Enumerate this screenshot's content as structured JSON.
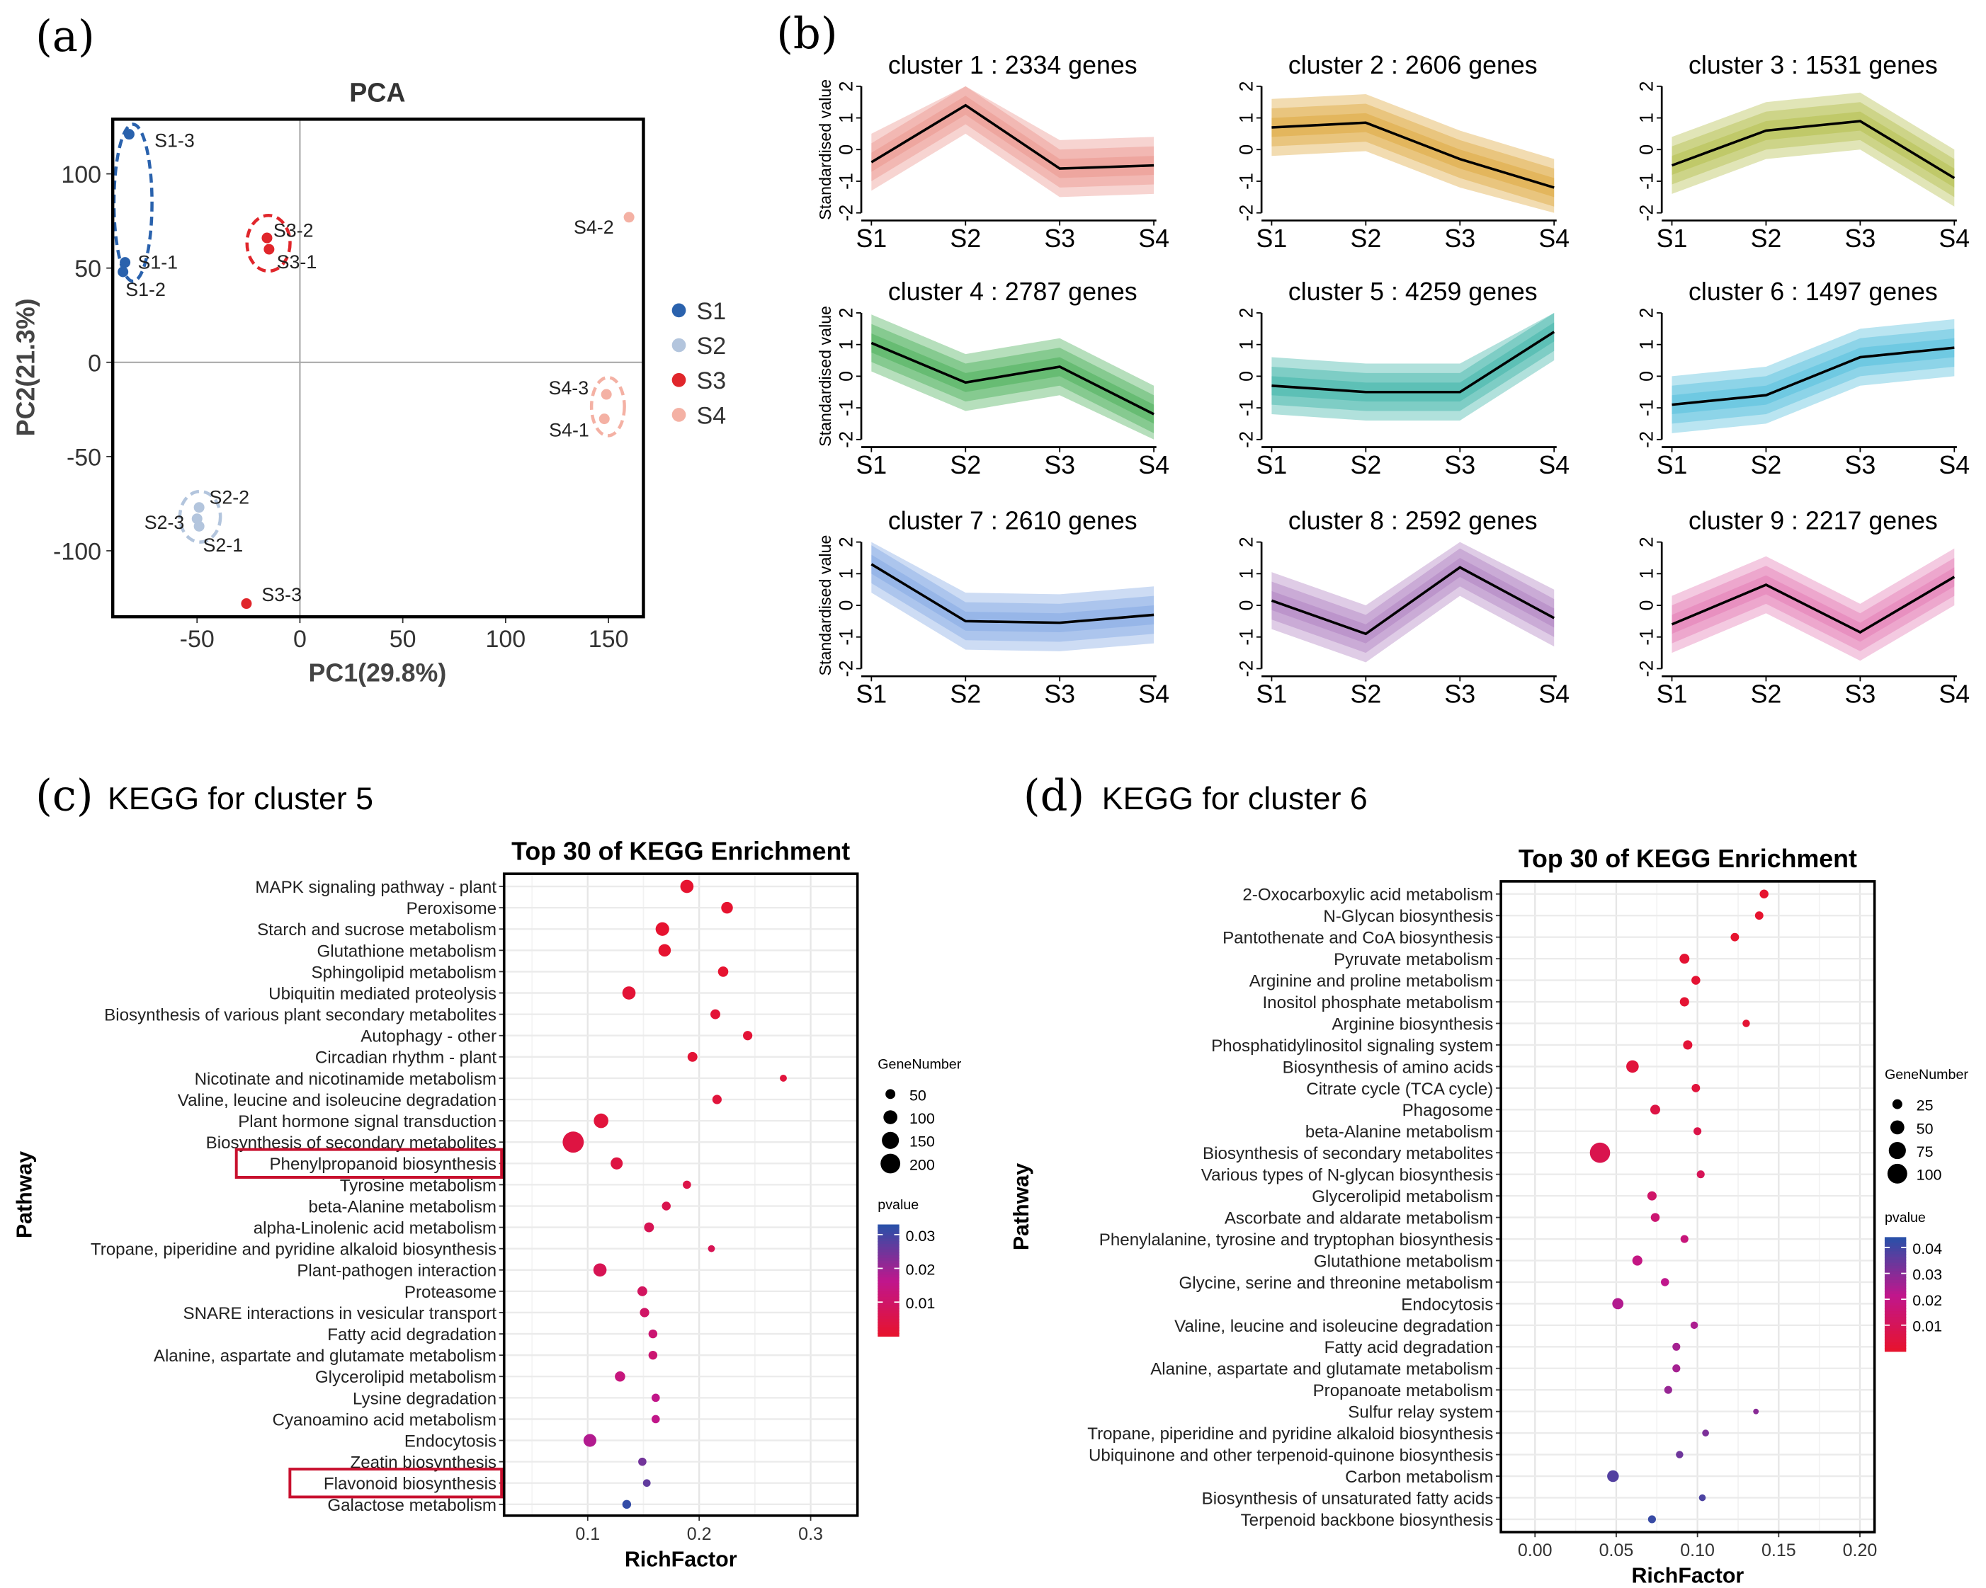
{
  "panel_labels": {
    "a": "(a)",
    "b": "(b)",
    "c": "(c)",
    "d": "(d)"
  },
  "headings": {
    "c": "KEGG for cluster 5",
    "d": "KEGG for cluster 6"
  },
  "chart_data": [
    {
      "type": "scatter",
      "title": "PCA",
      "xlabel": "PC1(29.8%)",
      "ylabel": "PC2(21.3%)",
      "xlim": [
        -91,
        167
      ],
      "ylim": [
        -135,
        129
      ],
      "xticks": [
        -50,
        0,
        50,
        100,
        150
      ],
      "yticks": [
        -100,
        -50,
        0,
        50,
        100
      ],
      "legend_position": "right",
      "groups": [
        {
          "name": "S1",
          "color": "#2a62ad"
        },
        {
          "name": "S2",
          "color": "#b3c5dd"
        },
        {
          "name": "S3",
          "color": "#e0262b"
        },
        {
          "name": "S4",
          "color": "#f4b1a4"
        }
      ],
      "points": [
        {
          "label": "S1-1",
          "group": "S1",
          "x": -85,
          "y": 53
        },
        {
          "label": "S1-2",
          "group": "S1",
          "x": -86,
          "y": 48
        },
        {
          "label": "S1-3",
          "group": "S1",
          "x": -83,
          "y": 121
        },
        {
          "label": "S2-1",
          "group": "S2",
          "x": -49,
          "y": -87
        },
        {
          "label": "S2-2",
          "group": "S2",
          "x": -49,
          "y": -77
        },
        {
          "label": "S2-3",
          "group": "S2",
          "x": -50,
          "y": -83
        },
        {
          "label": "S3-1",
          "group": "S3",
          "x": -15,
          "y": 60
        },
        {
          "label": "S3-2",
          "group": "S3",
          "x": -16,
          "y": 66
        },
        {
          "label": "S3-3",
          "group": "S3",
          "x": -26,
          "y": -128
        },
        {
          "label": "S4-1",
          "group": "S4",
          "x": 148,
          "y": -30
        },
        {
          "label": "S4-2",
          "group": "S4",
          "x": 160,
          "y": 77
        },
        {
          "label": "S4-3",
          "group": "S4",
          "x": 149,
          "y": -17
        }
      ]
    },
    {
      "type": "line",
      "categories": [
        "S1",
        "S2",
        "S3",
        "S4"
      ],
      "ylabel": "Standardised value",
      "ylim": [
        -2,
        2
      ],
      "yticks": [
        -2,
        -1,
        0,
        1,
        2
      ],
      "panels": [
        {
          "title": "cluster 1 : 2334 genes",
          "color": "#e8857c",
          "values": [
            -0.4,
            1.4,
            -0.6,
            -0.5
          ]
        },
        {
          "title": "cluster 2 : 2606 genes",
          "color": "#d99a1f",
          "values": [
            0.7,
            0.85,
            -0.3,
            -1.2
          ]
        },
        {
          "title": "cluster 3 : 1531 genes",
          "color": "#a8b530",
          "values": [
            -0.5,
            0.6,
            0.9,
            -0.9
          ]
        },
        {
          "title": "cluster 4 : 2787 genes",
          "color": "#2ea33e",
          "values": [
            1.05,
            -0.2,
            0.3,
            -1.2
          ]
        },
        {
          "title": "cluster 5 : 4259 genes",
          "color": "#1fa89a",
          "values": [
            -0.3,
            -0.5,
            -0.5,
            1.4
          ]
        },
        {
          "title": "cluster 6 : 1497 genes",
          "color": "#3ab4d8",
          "values": [
            -0.9,
            -0.6,
            0.6,
            0.9
          ]
        },
        {
          "title": "cluster 7 : 2610 genes",
          "color": "#6f9ce0",
          "values": [
            1.3,
            -0.5,
            -0.55,
            -0.3
          ]
        },
        {
          "title": "cluster 8 : 2592 genes",
          "color": "#a46cb8",
          "values": [
            0.15,
            -0.9,
            1.2,
            -0.4
          ]
        },
        {
          "title": "cluster 9 : 2217 genes",
          "color": "#e066a8",
          "values": [
            -0.6,
            0.65,
            -0.85,
            0.9
          ]
        }
      ]
    },
    {
      "type": "scatter",
      "title": "Top 30 of KEGG Enrichment",
      "xlabel": "RichFactor",
      "ylabel": "Pathway",
      "xlim": [
        0.025,
        0.342
      ],
      "xticks": [
        0.1,
        0.2,
        0.3
      ],
      "xtick_labels": [
        "0.1",
        "0.2",
        "0.3"
      ],
      "grid": true,
      "size_legend": {
        "title": "GeneNumber",
        "values": [
          50,
          100,
          150,
          200
        ]
      },
      "color_legend": {
        "title": "pvalue",
        "range": [
          0,
          0.033
        ],
        "ticks": [
          0.01,
          0.02,
          0.03
        ],
        "tick_labels": [
          "0.01",
          "0.02",
          "0.03"
        ],
        "low_color": "#e8132a",
        "high_color": "#2a50a8"
      },
      "highlighted": [
        "Phenylpropanoid biosynthesis",
        "Flavonoid biosynthesis"
      ],
      "highlight_color": "#c8102e",
      "pathways": [
        {
          "name": "MAPK signaling pathway - plant",
          "rich_factor": 0.189,
          "gene_number": 90,
          "pvalue": 0.001
        },
        {
          "name": "Peroxisome",
          "rich_factor": 0.225,
          "gene_number": 70,
          "pvalue": 0.001
        },
        {
          "name": "Starch and sucrose metabolism",
          "rich_factor": 0.167,
          "gene_number": 95,
          "pvalue": 0.001
        },
        {
          "name": "Glutathione metabolism",
          "rich_factor": 0.169,
          "gene_number": 80,
          "pvalue": 0.001
        },
        {
          "name": "Sphingolipid metabolism",
          "rich_factor": 0.2215,
          "gene_number": 55,
          "pvalue": 0.001
        },
        {
          "name": "Ubiquitin mediated proteolysis",
          "rich_factor": 0.137,
          "gene_number": 90,
          "pvalue": 0.002
        },
        {
          "name": "Biosynthesis of various plant secondary metabolites",
          "rich_factor": 0.2145,
          "gene_number": 50,
          "pvalue": 0.002
        },
        {
          "name": "Autophagy - other",
          "rich_factor": 0.2435,
          "gene_number": 45,
          "pvalue": 0.002
        },
        {
          "name": "Circadian rhythm - plant",
          "rich_factor": 0.194,
          "gene_number": 50,
          "pvalue": 0.002
        },
        {
          "name": "Nicotinate and nicotinamide metabolism",
          "rich_factor": 0.2755,
          "gene_number": 25,
          "pvalue": 0.003
        },
        {
          "name": "Valine, leucine and isoleucine degradation",
          "rich_factor": 0.216,
          "gene_number": 45,
          "pvalue": 0.003
        },
        {
          "name": "Plant hormone signal transduction",
          "rich_factor": 0.112,
          "gene_number": 110,
          "pvalue": 0.003
        },
        {
          "name": "Biosynthesis of secondary metabolites",
          "rich_factor": 0.087,
          "gene_number": 230,
          "pvalue": 0.004
        },
        {
          "name": "Phenylpropanoid biosynthesis",
          "rich_factor": 0.126,
          "gene_number": 75,
          "pvalue": 0.004
        },
        {
          "name": "Tyrosine metabolism",
          "rich_factor": 0.189,
          "gene_number": 35,
          "pvalue": 0.005
        },
        {
          "name": "beta-Alanine metabolism",
          "rich_factor": 0.1705,
          "gene_number": 40,
          "pvalue": 0.006
        },
        {
          "name": "alpha-Linolenic acid metabolism",
          "rich_factor": 0.155,
          "gene_number": 50,
          "pvalue": 0.007
        },
        {
          "name": "Tropane, piperidine and pyridine alkaloid biosynthesis",
          "rich_factor": 0.211,
          "gene_number": 25,
          "pvalue": 0.007
        },
        {
          "name": "Plant-pathogen interaction",
          "rich_factor": 0.111,
          "gene_number": 90,
          "pvalue": 0.007
        },
        {
          "name": "Proteasome",
          "rich_factor": 0.149,
          "gene_number": 50,
          "pvalue": 0.009
        },
        {
          "name": "SNARE interactions in vesicular transport",
          "rich_factor": 0.151,
          "gene_number": 45,
          "pvalue": 0.01
        },
        {
          "name": "Fatty acid degradation",
          "rich_factor": 0.1585,
          "gene_number": 40,
          "pvalue": 0.012
        },
        {
          "name": "Alanine, aspartate and glutamate metabolism",
          "rich_factor": 0.1585,
          "gene_number": 40,
          "pvalue": 0.012
        },
        {
          "name": "Glycerolipid metabolism",
          "rich_factor": 0.129,
          "gene_number": 55,
          "pvalue": 0.014
        },
        {
          "name": "Lysine degradation",
          "rich_factor": 0.161,
          "gene_number": 35,
          "pvalue": 0.016
        },
        {
          "name": "Cyanoamino acid metabolism",
          "rich_factor": 0.161,
          "gene_number": 35,
          "pvalue": 0.016
        },
        {
          "name": "Endocytosis",
          "rich_factor": 0.102,
          "gene_number": 85,
          "pvalue": 0.018
        },
        {
          "name": "Zeatin biosynthesis",
          "rich_factor": 0.149,
          "gene_number": 35,
          "pvalue": 0.025
        },
        {
          "name": "Flavonoid biosynthesis",
          "rich_factor": 0.153,
          "gene_number": 30,
          "pvalue": 0.027
        },
        {
          "name": "Galactose metabolism",
          "rich_factor": 0.135,
          "gene_number": 40,
          "pvalue": 0.032
        }
      ]
    },
    {
      "type": "scatter",
      "title": "Top 30 of KEGG Enrichment",
      "xlabel": "RichFactor",
      "ylabel": "Pathway",
      "xlim": [
        -0.021,
        0.209
      ],
      "xticks": [
        0,
        0.05,
        0.1,
        0.15,
        0.2
      ],
      "xtick_labels": [
        "0.00",
        "0.05",
        "0.10",
        "0.15",
        "0.20"
      ],
      "grid": true,
      "size_legend": {
        "title": "GeneNumber",
        "values": [
          25,
          50,
          75,
          100
        ]
      },
      "color_legend": {
        "title": "pvalue",
        "range": [
          0,
          0.044
        ],
        "ticks": [
          0.01,
          0.02,
          0.03,
          0.04
        ],
        "tick_labels": [
          "0.01",
          "0.02",
          "0.03",
          "0.04"
        ],
        "low_color": "#e8132a",
        "high_color": "#2a50a8"
      },
      "highlighted": [],
      "pathways": [
        {
          "name": "2-Oxocarboxylic acid metabolism",
          "rich_factor": 0.141,
          "gene_number": 20,
          "pvalue": 0.001
        },
        {
          "name": "N-Glycan biosynthesis",
          "rich_factor": 0.138,
          "gene_number": 18,
          "pvalue": 0.001
        },
        {
          "name": "Pantothenate and CoA biosynthesis",
          "rich_factor": 0.123,
          "gene_number": 18,
          "pvalue": 0.001
        },
        {
          "name": "Pyruvate metabolism",
          "rich_factor": 0.092,
          "gene_number": 25,
          "pvalue": 0.002
        },
        {
          "name": "Arginine and proline metabolism",
          "rich_factor": 0.099,
          "gene_number": 20,
          "pvalue": 0.002
        },
        {
          "name": "Inositol phosphate metabolism",
          "rich_factor": 0.092,
          "gene_number": 22,
          "pvalue": 0.002
        },
        {
          "name": "Arginine biosynthesis",
          "rich_factor": 0.13,
          "gene_number": 14,
          "pvalue": 0.002
        },
        {
          "name": "Phosphatidylinositol signaling system",
          "rich_factor": 0.094,
          "gene_number": 22,
          "pvalue": 0.003
        },
        {
          "name": "Biosynthesis of amino acids",
          "rich_factor": 0.06,
          "gene_number": 40,
          "pvalue": 0.004
        },
        {
          "name": "Citrate cycle (TCA cycle)",
          "rich_factor": 0.099,
          "gene_number": 18,
          "pvalue": 0.004
        },
        {
          "name": "Phagosome",
          "rich_factor": 0.074,
          "gene_number": 25,
          "pvalue": 0.006
        },
        {
          "name": "beta-Alanine metabolism",
          "rich_factor": 0.1,
          "gene_number": 16,
          "pvalue": 0.007
        },
        {
          "name": "Biosynthesis of secondary metabolites",
          "rich_factor": 0.04,
          "gene_number": 105,
          "pvalue": 0.008
        },
        {
          "name": "Various types of N-glycan biosynthesis",
          "rich_factor": 0.102,
          "gene_number": 16,
          "pvalue": 0.01
        },
        {
          "name": "Glycerolipid metabolism",
          "rich_factor": 0.072,
          "gene_number": 22,
          "pvalue": 0.014
        },
        {
          "name": "Ascorbate and aldarate metabolism",
          "rich_factor": 0.074,
          "gene_number": 20,
          "pvalue": 0.016
        },
        {
          "name": "Phenylalanine, tyrosine and tryptophan biosynthesis",
          "rich_factor": 0.092,
          "gene_number": 16,
          "pvalue": 0.018
        },
        {
          "name": "Glutathione metabolism",
          "rich_factor": 0.063,
          "gene_number": 26,
          "pvalue": 0.02
        },
        {
          "name": "Glycine, serine and threonine metabolism",
          "rich_factor": 0.08,
          "gene_number": 17,
          "pvalue": 0.022
        },
        {
          "name": "Endocytosis",
          "rich_factor": 0.051,
          "gene_number": 32,
          "pvalue": 0.024
        },
        {
          "name": "Valine, leucine and isoleucine degradation",
          "rich_factor": 0.098,
          "gene_number": 14,
          "pvalue": 0.025
        },
        {
          "name": "Fatty acid degradation",
          "rich_factor": 0.087,
          "gene_number": 16,
          "pvalue": 0.026
        },
        {
          "name": "Alanine, aspartate and glutamate metabolism",
          "rich_factor": 0.087,
          "gene_number": 16,
          "pvalue": 0.026
        },
        {
          "name": "Propanoate metabolism",
          "rich_factor": 0.082,
          "gene_number": 16,
          "pvalue": 0.028
        },
        {
          "name": "Sulfur relay system",
          "rich_factor": 0.136,
          "gene_number": 8,
          "pvalue": 0.03
        },
        {
          "name": "Tropane, piperidine and pyridine alkaloid biosynthesis",
          "rich_factor": 0.105,
          "gene_number": 12,
          "pvalue": 0.032
        },
        {
          "name": "Ubiquinone and other terpenoid-quinone biosynthesis",
          "rich_factor": 0.089,
          "gene_number": 14,
          "pvalue": 0.034
        },
        {
          "name": "Carbon metabolism",
          "rich_factor": 0.048,
          "gene_number": 35,
          "pvalue": 0.038
        },
        {
          "name": "Biosynthesis of unsaturated fatty acids",
          "rich_factor": 0.103,
          "gene_number": 12,
          "pvalue": 0.039
        },
        {
          "name": "Terpenoid backbone biosynthesis",
          "rich_factor": 0.072,
          "gene_number": 16,
          "pvalue": 0.042
        }
      ]
    }
  ]
}
